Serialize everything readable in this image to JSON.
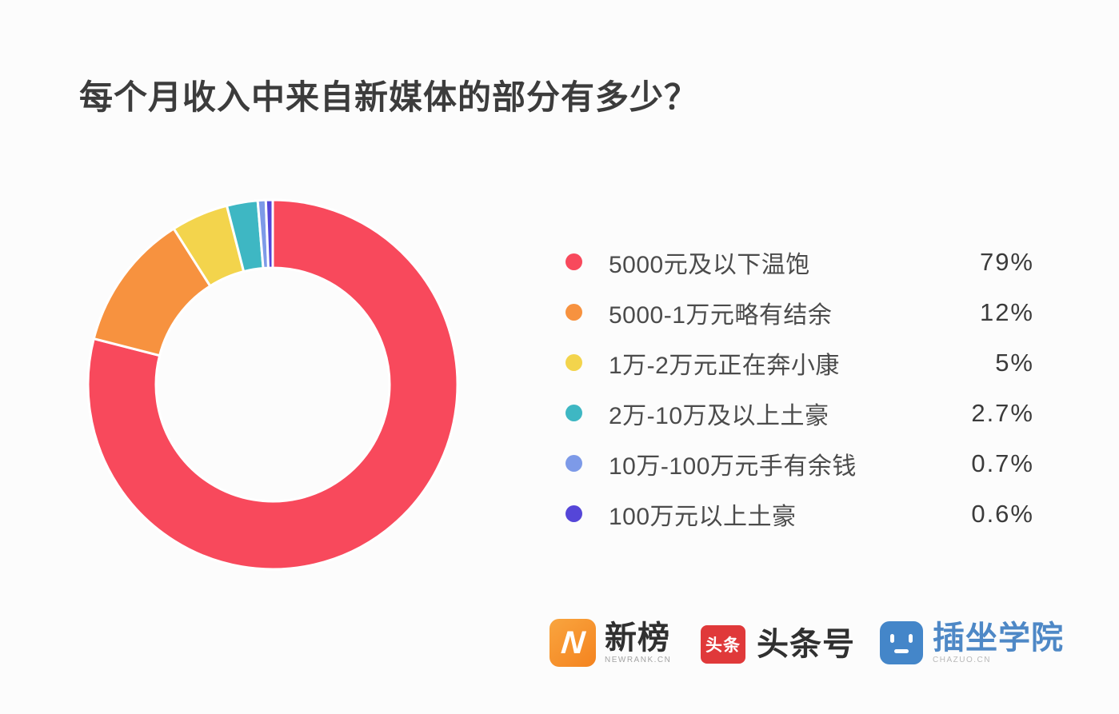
{
  "title": "每个月收入中来自新媒体的部分有多少？",
  "chart_data": {
    "type": "pie",
    "subtype": "donut",
    "title": "每个月收入中来自新媒体的部分有多少？",
    "legend_position": "right",
    "start_angle_deg": 0,
    "direction": "clockwise",
    "inner_radius_ratio": 0.63,
    "segments": [
      {
        "label": "5000元及以下温饱",
        "value": 79,
        "display": "79%",
        "color": "#f8495c"
      },
      {
        "label": "5000-1万元略有结余",
        "value": 12,
        "display": "12%",
        "color": "#f7923f"
      },
      {
        "label": "1万-2万元正在奔小康",
        "value": 5,
        "display": "5%",
        "color": "#f3d44c"
      },
      {
        "label": "2万-10万及以上土豪",
        "value": 2.7,
        "display": "2.7%",
        "color": "#3eb7c3"
      },
      {
        "label": "10万-100万元手有余钱",
        "value": 0.7,
        "display": "0.7%",
        "color": "#7d9ae8"
      },
      {
        "label": "100万元以上土豪",
        "value": 0.6,
        "display": "0.6%",
        "color": "#5546d8"
      }
    ]
  },
  "footer": {
    "logos": [
      {
        "name": "新榜",
        "caption": "NEWRANK.CN",
        "icon_glyph": "N",
        "icon_color": "#f68d2e"
      },
      {
        "name": "头条号",
        "caption": "",
        "icon_glyph": "头条",
        "icon_color": "#e0393a"
      },
      {
        "name": "插坐学院",
        "caption": "CHAZUO.CN",
        "icon_glyph": "",
        "icon_color": "#4486c9"
      }
    ]
  }
}
